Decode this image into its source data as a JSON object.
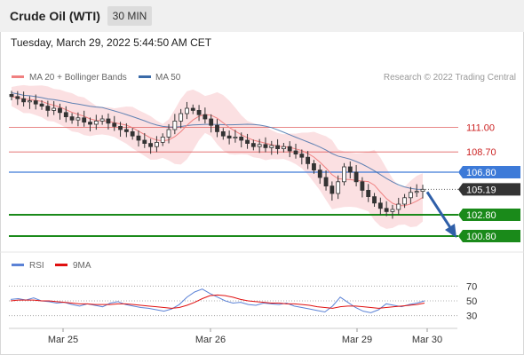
{
  "header": {
    "title": "Crude Oil (WTI)",
    "timeframe": "30 MIN"
  },
  "timestamp": "Tuesday, March 29, 2022 5:44:50 AM CET",
  "legend": {
    "ma20_label": "MA 20 + Bollinger Bands",
    "ma50_label": "MA 50",
    "copyright": "Research © 2022 Trading Central",
    "colors": {
      "ma20": "#f08080",
      "bands": "#fadadd",
      "ma50": "#3a6aa8"
    }
  },
  "rsi_legend": {
    "rsi_label": "RSI",
    "ma_label": "9MA",
    "colors": {
      "rsi": "#5b82d6",
      "ma": "#e01010"
    }
  },
  "chart_data": {
    "type": "candlestick",
    "price_axis": {
      "min": 99.8,
      "max": 114.8
    },
    "time_axis": {
      "ticks": [
        "Mar 25",
        "Mar 26",
        "Mar 29",
        "Mar 30"
      ]
    },
    "levels": [
      {
        "value": 111.0,
        "label": "111.00",
        "kind": "resistance",
        "color": "#e06060"
      },
      {
        "value": 108.7,
        "label": "108.70",
        "kind": "resistance",
        "color": "#e06060"
      },
      {
        "value": 106.8,
        "label": "106.80",
        "kind": "pivot",
        "color": "#3d7ad8"
      },
      {
        "value": 102.8,
        "label": "102.80",
        "kind": "support",
        "color": "#1a8a1a"
      },
      {
        "value": 100.8,
        "label": "100.80",
        "kind": "support",
        "color": "#1a8a1a"
      }
    ],
    "last_price": {
      "value": 105.19,
      "label": "105.19"
    },
    "close_series": [
      113.9,
      113.7,
      113.4,
      113.5,
      113.2,
      113.0,
      112.6,
      112.8,
      112.4,
      112.0,
      111.7,
      111.9,
      111.5,
      111.3,
      111.6,
      111.8,
      111.4,
      111.1,
      110.8,
      110.6,
      110.2,
      109.8,
      109.5,
      109.2,
      109.6,
      110.1,
      110.8,
      111.6,
      112.3,
      112.8,
      112.6,
      112.2,
      111.8,
      111.2,
      110.6,
      110.2,
      110.0,
      110.1,
      109.8,
      109.5,
      109.2,
      109.4,
      109.1,
      109.3,
      109.0,
      109.2,
      108.8,
      108.5,
      108.2,
      107.6,
      107.0,
      106.3,
      105.5,
      104.8,
      105.9,
      107.3,
      106.8,
      105.9,
      105.1,
      104.5,
      103.9,
      103.4,
      103.1,
      103.3,
      103.8,
      104.4,
      104.9,
      105.0,
      105.19
    ],
    "forecast": {
      "from": 105.19,
      "to": 100.8
    },
    "rsi": {
      "levels": [
        70,
        50,
        30
      ],
      "range": [
        20,
        80
      ],
      "rsi_values": [
        52,
        53,
        51,
        54,
        50,
        49,
        47,
        48,
        45,
        43,
        46,
        44,
        42,
        47,
        49,
        45,
        43,
        41,
        40,
        38,
        36,
        39,
        45,
        55,
        62,
        66,
        60,
        55,
        50,
        47,
        48,
        45,
        44,
        47,
        46,
        45,
        47,
        43,
        41,
        39,
        37,
        35,
        43,
        55,
        48,
        41,
        36,
        34,
        38,
        46,
        44,
        42,
        45,
        47,
        50
      ],
      "ma_values": [
        50,
        51,
        51,
        51,
        50,
        50,
        49,
        48,
        47,
        46,
        46,
        45,
        45,
        45,
        46,
        46,
        45,
        44,
        43,
        42,
        41,
        40,
        41,
        44,
        48,
        53,
        57,
        58,
        57,
        55,
        52,
        50,
        49,
        48,
        47,
        47,
        46,
        46,
        45,
        44,
        42,
        41,
        40,
        42,
        43,
        43,
        42,
        41,
        40,
        41,
        42,
        43,
        44,
        45,
        47
      ]
    }
  }
}
